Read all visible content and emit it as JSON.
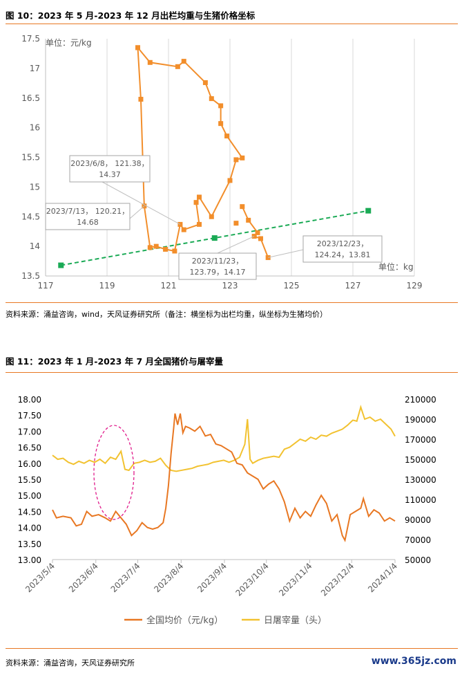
{
  "figure10": {
    "title": "图 10：2023 年 5 月-2023 年 12 月出栏均重与生猪价格坐标",
    "source": "资料来源：涌益咨询，wind，天风证券研究所（备注：横坐标为出栏均重，纵坐标为生猪均价）",
    "colors": {
      "series": "#F28E2B",
      "trend": "#1AAA55",
      "axis": "#D9D9D9"
    }
  },
  "figure11": {
    "title": "图 11：2023 年 1 月-2023 年 7 月全国猪价与屠宰量",
    "source": "资料来源：涌益咨询，天风证券研究所",
    "colors": {
      "price": "#E87722",
      "slaughter": "#F2C230",
      "highlight": "#E0198A"
    }
  },
  "watermark": "www.365jz.com",
  "chart_data": [
    {
      "type": "scatter",
      "xlabel": "单位：kg",
      "ylabel": "单位：元/kg",
      "xlim": [
        117,
        129
      ],
      "ylim": [
        13.5,
        17.5
      ],
      "xticks": [
        "117",
        "119",
        "121",
        "123",
        "125",
        "127",
        "129"
      ],
      "yticks": [
        "13.5",
        "14",
        "14.5",
        "15",
        "15.5",
        "16",
        "16.5",
        "17",
        "17.5"
      ],
      "grid": true,
      "series": [
        {
          "connected": true,
          "points": [
            [
              120.0,
              17.35
            ],
            [
              120.4,
              17.1
            ],
            [
              121.3,
              17.03
            ],
            [
              121.5,
              17.12
            ],
            [
              122.2,
              16.76
            ],
            [
              122.4,
              16.49
            ],
            [
              122.7,
              16.37
            ],
            [
              122.7,
              16.07
            ],
            [
              122.9,
              15.86
            ],
            [
              123.4,
              15.49
            ],
            [
              123.2,
              15.46
            ],
            [
              123.0,
              15.11
            ],
            [
              122.4,
              14.5
            ],
            [
              122.0,
              14.83
            ],
            [
              121.9,
              14.74
            ],
            [
              122.0,
              14.37
            ],
            [
              121.5,
              14.28
            ],
            [
              121.38,
              14.37
            ],
            [
              121.2,
              13.92
            ],
            [
              120.9,
              13.95
            ],
            [
              120.6,
              14.0
            ],
            [
              120.4,
              13.98
            ],
            [
              120.21,
              14.68
            ],
            [
              120.1,
              16.48
            ],
            [
              120.0,
              17.35
            ]
          ]
        },
        {
          "connected": true,
          "points": [
            [
              123.4,
              14.67
            ],
            [
              123.6,
              14.44
            ],
            [
              123.9,
              14.23
            ],
            [
              123.79,
              14.17
            ],
            [
              124.0,
              14.13
            ],
            [
              124.24,
              13.81
            ]
          ]
        },
        {
          "connected": false,
          "points": [
            [
              123.2,
              14.39
            ]
          ]
        }
      ],
      "trend": {
        "points": [
          [
            117.5,
            13.68
          ],
          [
            122.5,
            14.14
          ],
          [
            127.5,
            14.6
          ]
        ]
      },
      "annotations": [
        {
          "line1": "2023/6/8， 121.38，",
          "line2": "14.37",
          "point": [
            121.38,
            14.37
          ]
        },
        {
          "line1": "2023/7/13， 120.21，",
          "line2": "14.68",
          "point": [
            120.21,
            14.68
          ]
        },
        {
          "line1": "2023/11/23，",
          "line2": "123.79，14.17",
          "point": [
            123.79,
            14.17
          ]
        },
        {
          "line1": "2023/12/23，",
          "line2": "124.24，13.81",
          "point": [
            124.24,
            13.81
          ]
        }
      ]
    },
    {
      "type": "line",
      "x_start": "2023/5/4",
      "x_end": "2024/1/4",
      "xticks": [
        "2023/5/4",
        "2023/6/4",
        "2023/7/4",
        "2023/8/4",
        "2023/9/4",
        "2023/10/4",
        "2023/11/4",
        "2023/12/4",
        "2024/1/4"
      ],
      "y_left_lim": [
        13.0,
        18.0
      ],
      "y_left_ticks": [
        "13.00",
        "13.50",
        "14.00",
        "14.50",
        "15.00",
        "15.50",
        "16.00",
        "16.50",
        "17.00",
        "17.50",
        "18.00"
      ],
      "y_right_lim": [
        50000,
        210000
      ],
      "y_right_ticks": [
        "50000",
        "70000",
        "90000",
        "110000",
        "130000",
        "150000",
        "170000",
        "190000",
        "210000"
      ],
      "series": [
        {
          "name": "全国均价（元/kg）",
          "axis": "left",
          "points": [
            [
              0,
              14.55
            ],
            [
              3,
              14.3
            ],
            [
              8,
              14.35
            ],
            [
              14,
              14.3
            ],
            [
              18,
              14.05
            ],
            [
              22,
              14.1
            ],
            [
              26,
              14.5
            ],
            [
              30,
              14.35
            ],
            [
              35,
              14.4
            ],
            [
              40,
              14.3
            ],
            [
              44,
              14.2
            ],
            [
              48,
              14.5
            ],
            [
              52,
              14.3
            ],
            [
              56,
              14.1
            ],
            [
              60,
              13.75
            ],
            [
              64,
              13.9
            ],
            [
              68,
              14.15
            ],
            [
              72,
              14.0
            ],
            [
              76,
              13.95
            ],
            [
              80,
              14.0
            ],
            [
              84,
              14.15
            ],
            [
              86,
              14.6
            ],
            [
              88,
              15.3
            ],
            [
              90,
              16.3
            ],
            [
              92,
              17.1
            ],
            [
              93,
              17.55
            ],
            [
              95,
              17.2
            ],
            [
              97,
              17.55
            ],
            [
              99,
              16.95
            ],
            [
              101,
              17.15
            ],
            [
              104,
              17.1
            ],
            [
              108,
              17.0
            ],
            [
              112,
              17.15
            ],
            [
              116,
              16.85
            ],
            [
              120,
              16.9
            ],
            [
              124,
              16.6
            ],
            [
              128,
              16.55
            ],
            [
              132,
              16.45
            ],
            [
              136,
              16.35
            ],
            [
              140,
              16.0
            ],
            [
              144,
              15.95
            ],
            [
              148,
              15.7
            ],
            [
              152,
              15.6
            ],
            [
              156,
              15.5
            ],
            [
              160,
              15.2
            ],
            [
              164,
              15.35
            ],
            [
              168,
              15.45
            ],
            [
              172,
              15.2
            ],
            [
              176,
              14.8
            ],
            [
              180,
              14.2
            ],
            [
              184,
              14.6
            ],
            [
              188,
              14.3
            ],
            [
              192,
              14.5
            ],
            [
              196,
              14.35
            ],
            [
              200,
              14.7
            ],
            [
              204,
              15.0
            ],
            [
              208,
              14.75
            ],
            [
              212,
              14.2
            ],
            [
              216,
              14.4
            ],
            [
              220,
              13.75
            ],
            [
              222,
              13.6
            ],
            [
              226,
              14.4
            ],
            [
              230,
              14.5
            ],
            [
              234,
              14.6
            ],
            [
              236,
              14.9
            ],
            [
              240,
              14.35
            ],
            [
              244,
              14.55
            ],
            [
              248,
              14.45
            ],
            [
              252,
              14.2
            ],
            [
              256,
              14.3
            ],
            [
              260,
              14.2
            ]
          ]
        },
        {
          "name": "日屠宰量（头）",
          "axis": "right",
          "points": [
            [
              0,
              154000
            ],
            [
              4,
              150000
            ],
            [
              8,
              151000
            ],
            [
              12,
              147000
            ],
            [
              16,
              145000
            ],
            [
              20,
              148000
            ],
            [
              24,
              146000
            ],
            [
              28,
              149000
            ],
            [
              32,
              147000
            ],
            [
              36,
              150000
            ],
            [
              40,
              146000
            ],
            [
              44,
              152000
            ],
            [
              48,
              150000
            ],
            [
              52,
              158000
            ],
            [
              55,
              140000
            ],
            [
              58,
              139000
            ],
            [
              62,
              146000
            ],
            [
              66,
              147000
            ],
            [
              70,
              149000
            ],
            [
              74,
              147000
            ],
            [
              78,
              148000
            ],
            [
              82,
              151000
            ],
            [
              86,
              144000
            ],
            [
              90,
              139000
            ],
            [
              94,
              138000
            ],
            [
              98,
              139000
            ],
            [
              102,
              140000
            ],
            [
              106,
              141000
            ],
            [
              110,
              143000
            ],
            [
              114,
              144000
            ],
            [
              118,
              145000
            ],
            [
              122,
              147000
            ],
            [
              126,
              148000
            ],
            [
              130,
              149000
            ],
            [
              134,
              147000
            ],
            [
              138,
              149000
            ],
            [
              142,
              152000
            ],
            [
              146,
              165000
            ],
            [
              148,
              190000
            ],
            [
              150,
              150000
            ],
            [
              152,
              146000
            ],
            [
              156,
              149000
            ],
            [
              160,
              151000
            ],
            [
              164,
              152000
            ],
            [
              168,
              153000
            ],
            [
              172,
              152000
            ],
            [
              176,
              160000
            ],
            [
              180,
              162000
            ],
            [
              184,
              166000
            ],
            [
              188,
              170000
            ],
            [
              192,
              168000
            ],
            [
              196,
              172000
            ],
            [
              200,
              170000
            ],
            [
              204,
              174000
            ],
            [
              208,
              173000
            ],
            [
              212,
              176000
            ],
            [
              216,
              178000
            ],
            [
              220,
              180000
            ],
            [
              224,
              184000
            ],
            [
              228,
              189000
            ],
            [
              231,
              188000
            ],
            [
              234,
              202000
            ],
            [
              237,
              190000
            ],
            [
              241,
              192000
            ],
            [
              245,
              188000
            ],
            [
              249,
              190000
            ],
            [
              253,
              185000
            ],
            [
              257,
              180000
            ],
            [
              260,
              173000
            ]
          ]
        }
      ],
      "annotation": "dashed-ellipse-around-2023/6/4-to-2023/7/4"
    }
  ]
}
